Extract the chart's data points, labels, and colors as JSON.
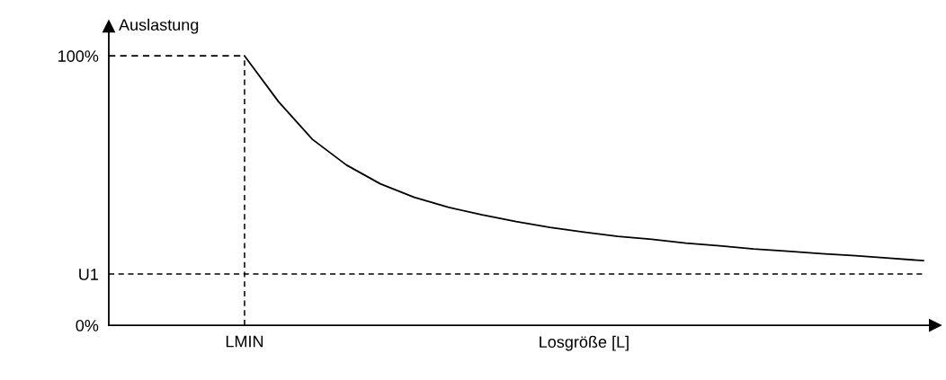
{
  "chart_data": {
    "type": "line",
    "ylabel": "Auslastung",
    "xlabel": "Losgröße [L]",
    "categories": [
      null,
      null,
      null,
      null,
      "LMIN",
      null,
      null,
      null,
      null,
      null,
      null,
      null,
      null,
      null,
      null,
      null,
      null,
      null,
      null,
      null,
      null,
      null,
      null,
      null,
      null
    ],
    "series": [
      {
        "color": "#000000",
        "values": [
          null,
          null,
          null,
          null,
          100,
          83,
          69,
          59.5,
          52.5,
          47.5,
          43.8,
          41,
          38.5,
          36.3,
          34.6,
          33,
          31.9,
          30.5,
          29.5,
          28.3,
          27.5,
          26.6,
          25.8,
          24.9,
          24
        ]
      },
      {
        "color": "#000000",
        "line_style": "dashed",
        "values": [
          100,
          100,
          100,
          100,
          100,
          null,
          null,
          null,
          null,
          null,
          null,
          null,
          null,
          null,
          null,
          null,
          null,
          null,
          null,
          null,
          null,
          null,
          null,
          null,
          null
        ]
      }
    ],
    "ylim": [
      0,
      111
    ],
    "yticks": [
      {
        "value": 0,
        "label": "0%"
      },
      {
        "value": 19,
        "label": "U1"
      },
      {
        "value": 100,
        "label": "100%"
      }
    ],
    "ref_lines": [
      {
        "axis": "y",
        "value": 19,
        "line_style": "dashed",
        "color": "#000000"
      },
      {
        "axis": "x",
        "value": "LMIN",
        "line_style": "dashed",
        "color": "#000000"
      }
    ],
    "grid": false,
    "legend": false,
    "marker": "none"
  }
}
